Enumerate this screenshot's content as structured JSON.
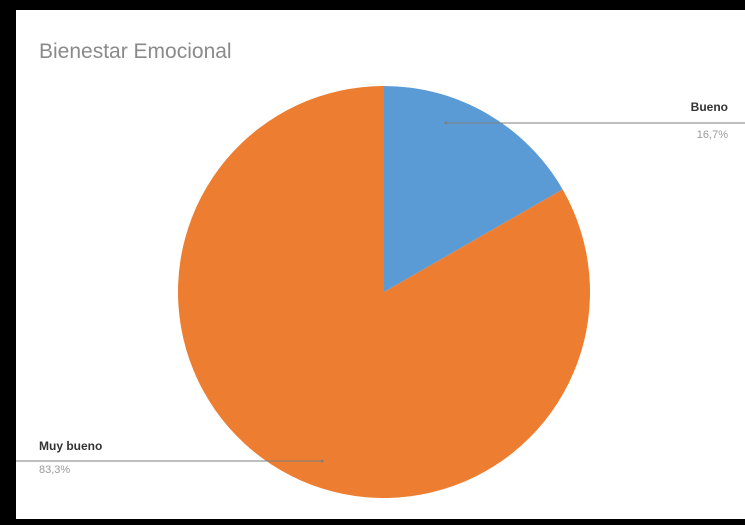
{
  "chart_data": {
    "type": "pie",
    "title": "Bienestar Emocional",
    "slices": [
      {
        "label": "Bueno",
        "value": 16.7,
        "value_label": "16,7%",
        "color": "#5B9BD5"
      },
      {
        "label": "Muy bueno",
        "value": 83.3,
        "value_label": "83,3%",
        "color": "#ED7D31"
      }
    ],
    "start_angle": "12 o'clock, clockwise",
    "legend": "none (callout labels)"
  },
  "colors": {
    "frame": "#000000",
    "background": "#ffffff",
    "title": "#8a8a8a",
    "leader_line": "#7f7f7f"
  }
}
